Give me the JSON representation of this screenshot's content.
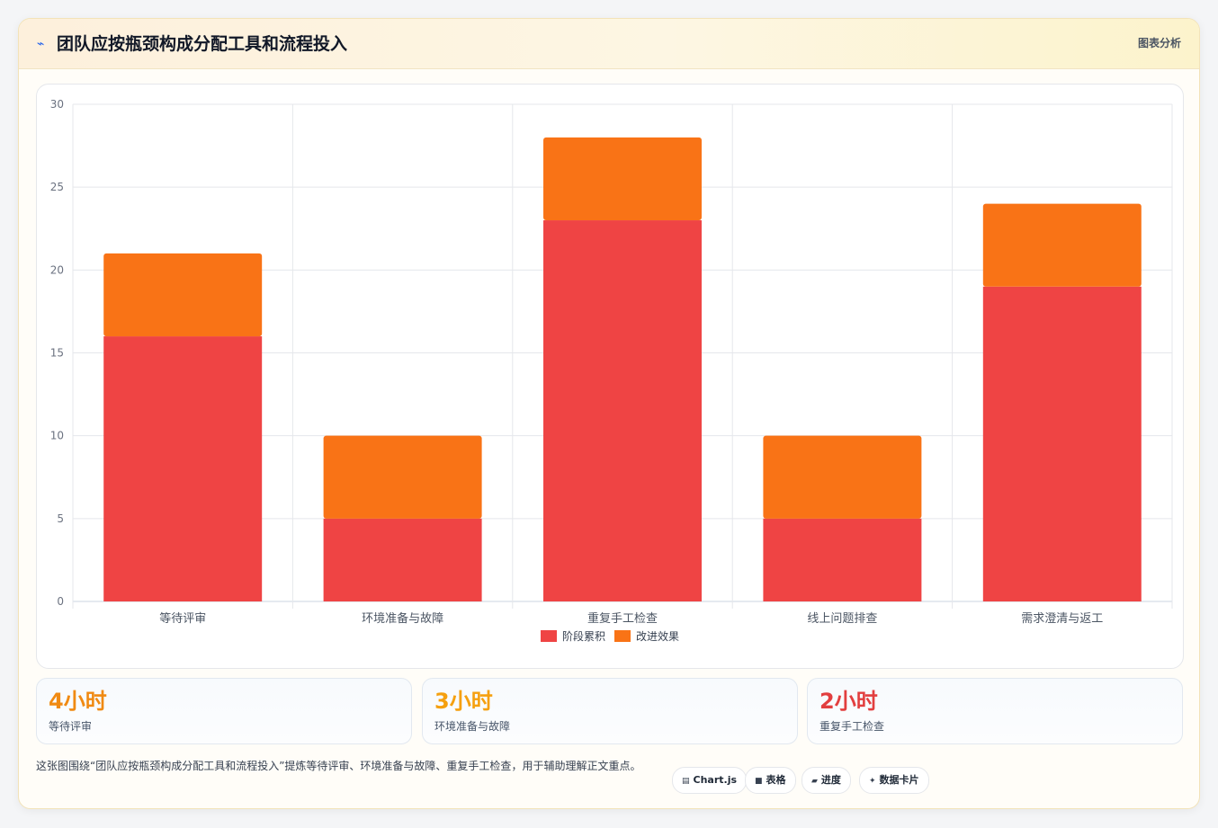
{
  "header": {
    "icon": "lightning-icon",
    "title": "团队应按瓶颈构成分配工具和流程投入",
    "right_label": "图表分析"
  },
  "chart_data": {
    "type": "bar",
    "stacked": true,
    "categories": [
      "等待评审",
      "环境准备与故障",
      "重复手工检查",
      "线上问题排查",
      "需求澄清与返工"
    ],
    "series": [
      {
        "name": "阶段累积",
        "values": [
          16,
          5,
          23,
          5,
          19
        ],
        "color": "#ef4444"
      },
      {
        "name": "改进效果",
        "values": [
          5,
          5,
          5,
          5,
          5
        ],
        "color": "#f97316"
      }
    ],
    "ylim": [
      0,
      30
    ],
    "yticks": [
      0,
      5,
      10,
      15,
      20,
      25,
      30
    ],
    "grid": true,
    "legend": "bottom"
  },
  "stats": [
    {
      "value": "4小时",
      "label": "等待评审",
      "color": "#f08a12"
    },
    {
      "value": "3小时",
      "label": "环境准备与故障",
      "color": "#f5a00f"
    },
    {
      "value": "2小时",
      "label": "重复手工检查",
      "color": "#e23f3f"
    }
  ],
  "caption": "这张图围绕“团队应按瓶颈构成分配工具和流程投入”提炼等待评审、环境准备与故障、重复手工检查，用于辅助理解正文重点。",
  "chips": [
    {
      "icon": "chart-icon",
      "glyph": "▤",
      "label": "Chart.js"
    },
    {
      "icon": "table-icon",
      "glyph": "■",
      "label": "表格"
    },
    {
      "icon": "progress-icon",
      "glyph": "▰",
      "label": "进度"
    },
    {
      "icon": "sparkle-icon",
      "glyph": "✦",
      "label": "数据卡片"
    }
  ]
}
